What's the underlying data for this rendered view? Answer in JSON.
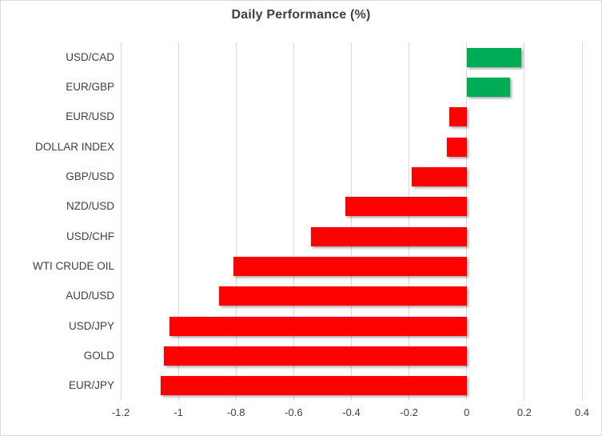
{
  "chart_data": {
    "type": "bar",
    "orientation": "horizontal",
    "title": "Daily Performance (%)",
    "categories": [
      "USD/CAD",
      "EUR/GBP",
      "EUR/USD",
      "DOLLAR INDEX",
      "GBP/USD",
      "NZD/USD",
      "USD/CHF",
      "WTI CRUDE OIL",
      "AUD/USD",
      "USD/JPY",
      "GOLD",
      "EUR/JPY"
    ],
    "values": [
      0.19,
      0.15,
      -0.06,
      -0.07,
      -0.19,
      -0.42,
      -0.54,
      -0.81,
      -0.86,
      -1.03,
      -1.05,
      -1.06
    ],
    "xlabel": "",
    "ylabel": "",
    "xlim": [
      -1.2,
      0.4
    ],
    "x_tick_labels": [
      "-1.2",
      "-1",
      "-0.8",
      "-0.6",
      "-0.4",
      "-0.2",
      "0",
      "0.2",
      "0.4"
    ],
    "x_tick_values": [
      -1.2,
      -1,
      -0.8,
      -0.6,
      -0.4,
      -0.2,
      0,
      0.2,
      0.4
    ],
    "grid": true,
    "legend": false,
    "colors": {
      "positive": "#00ab55",
      "negative": "#fe0000",
      "gridline": "#d9d9d9",
      "text": "#404040",
      "title_text": "#3f3f3f",
      "frame_border": "#d9d9d9",
      "background": "#ffffff"
    }
  }
}
